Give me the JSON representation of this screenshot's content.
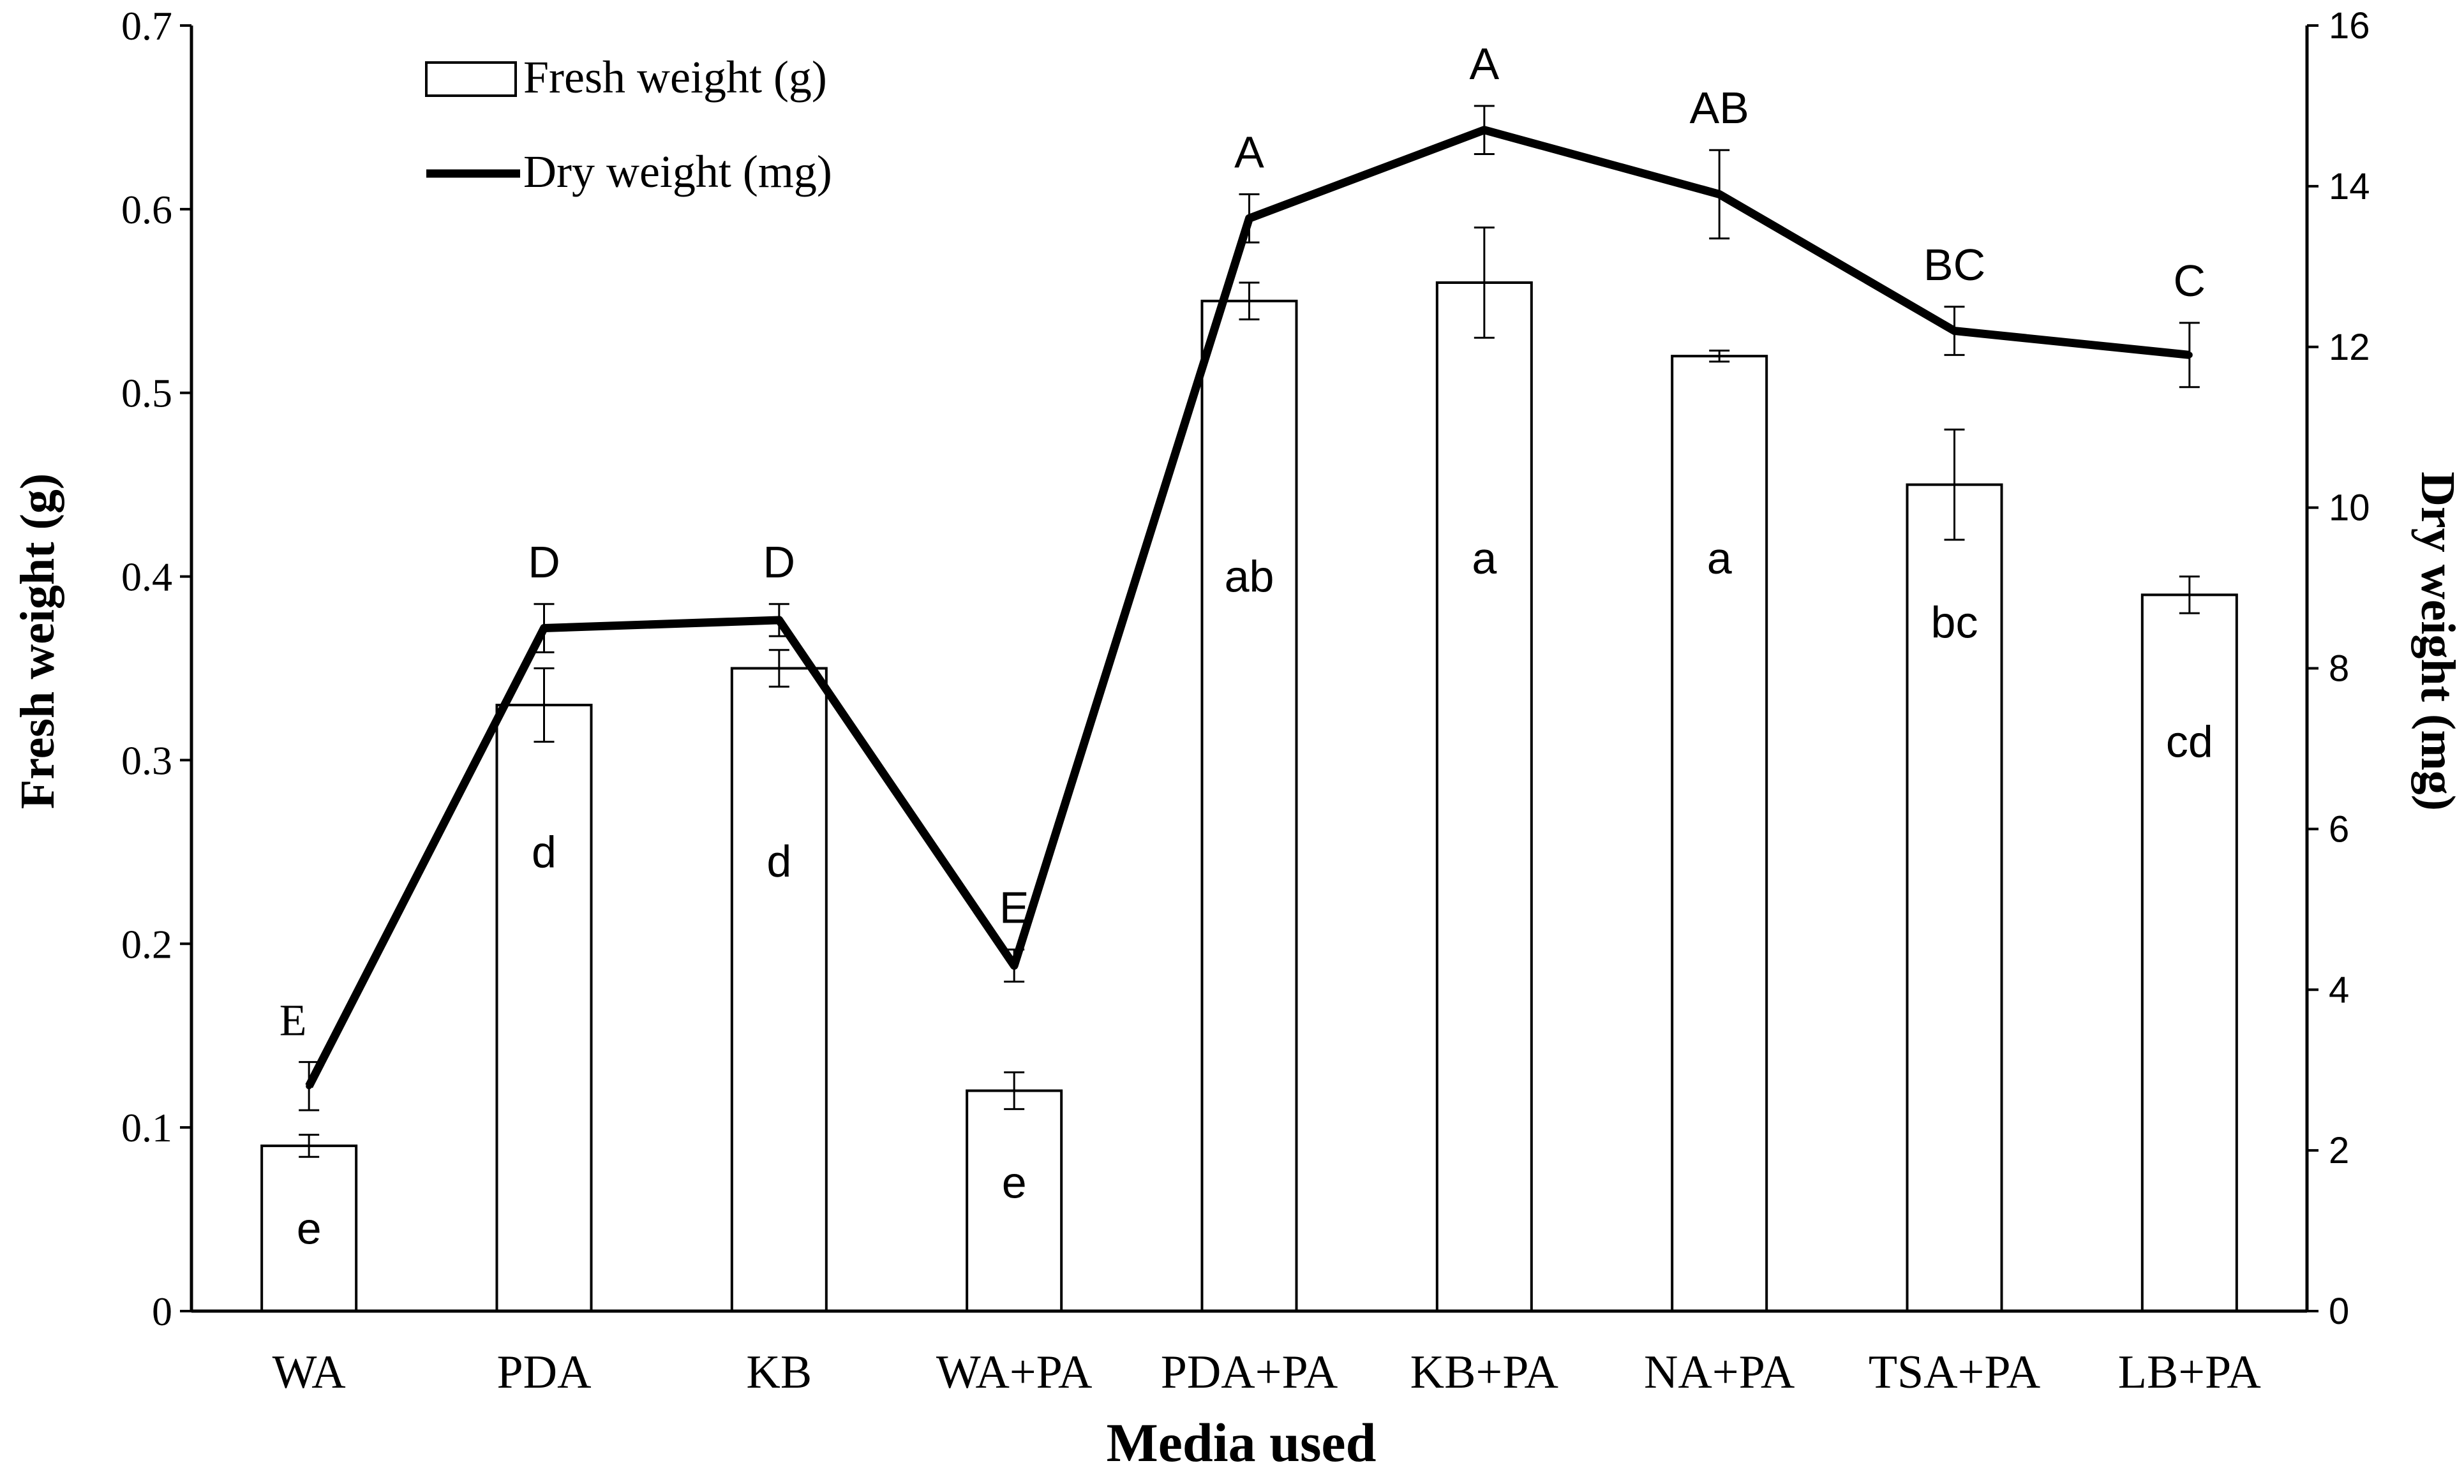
{
  "chart_data": {
    "type": "bar",
    "xlabel": "Media used",
    "ylabel": "Fresh weight (g)",
    "y2label": "Dry weight (mg)",
    "ylim": [
      0,
      0.7
    ],
    "y2lim": [
      0,
      16
    ],
    "yticks": [
      "0",
      "0.1",
      "0.2",
      "0.3",
      "0.4",
      "0.5",
      "0.6",
      "0.7"
    ],
    "y2ticks": [
      "0",
      "2",
      "4",
      "6",
      "8",
      "10",
      "12",
      "14",
      "16"
    ],
    "categories": [
      "WA",
      "PDA",
      "KB",
      "WA+PA",
      "PDA+PA",
      "KB+PA",
      "NA+PA",
      "TSA+PA",
      "LB+PA"
    ],
    "legend_position": "top-left",
    "series": [
      {
        "name": "Fresh weight (g)",
        "type": "bar",
        "axis": "left",
        "values": [
          0.09,
          0.33,
          0.35,
          0.12,
          0.55,
          0.56,
          0.52,
          0.45,
          0.39
        ],
        "errors": [
          0.006,
          0.02,
          0.01,
          0.01,
          0.01,
          0.03,
          0.003,
          0.03,
          0.01
        ],
        "letters": [
          "e",
          "d",
          "d",
          "e",
          "ab",
          "a",
          "a",
          "bc",
          "cd"
        ],
        "letter_values": [
          0.045,
          0.25,
          0.245,
          0.07,
          0.4,
          0.41,
          0.41,
          0.375,
          0.31
        ]
      },
      {
        "name": "Dry weight (mg)",
        "type": "line",
        "axis": "right",
        "values": [
          2.8,
          8.5,
          8.6,
          4.3,
          13.6,
          14.7,
          13.9,
          12.2,
          11.9
        ],
        "errors": [
          0.3,
          0.3,
          0.2,
          0.2,
          0.3,
          0.3,
          0.55,
          0.3,
          0.4
        ],
        "letters": [
          "E",
          "D",
          "D",
          "E",
          "A",
          "A",
          "AB",
          "BC",
          "C"
        ]
      }
    ]
  },
  "colors": {
    "bar_fill": "#ffffff",
    "bar_stroke": "#000000",
    "line": "#000000",
    "text": "#000000"
  }
}
